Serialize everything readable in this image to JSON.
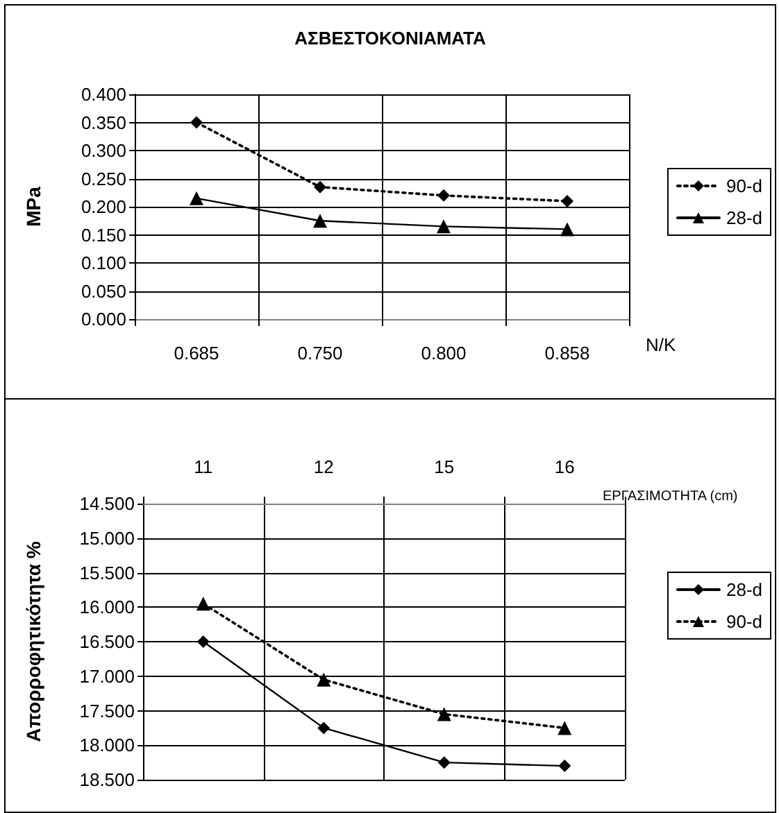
{
  "chart_data": [
    {
      "type": "line",
      "title": "ΑΣΒΕΣΤΟΚΟΝΙΑΜΑΤΑ",
      "xlabel": "N/K",
      "ylabel": "MPa",
      "categories": [
        "0.685",
        "0.750",
        "0.800",
        "0.858"
      ],
      "series": [
        {
          "name": "90-d",
          "color": "#000000",
          "marker": "diamond",
          "line_style": "dotted",
          "values": [
            0.35,
            0.235,
            0.22,
            0.21
          ]
        },
        {
          "name": "28-d",
          "color": "#000000",
          "marker": "triangle",
          "line_style": "solid",
          "values": [
            0.215,
            0.175,
            0.165,
            0.16
          ]
        }
      ],
      "ylim": [
        0,
        0.4
      ],
      "yticks": [
        {
          "value": 0,
          "label": "0.000"
        },
        {
          "value": 0.05,
          "label": "0.050"
        },
        {
          "value": 0.1,
          "label": "0.100"
        },
        {
          "value": 0.15,
          "label": "0.150"
        },
        {
          "value": 0.2,
          "label": "0.200"
        },
        {
          "value": 0.25,
          "label": "0.250"
        },
        {
          "value": 0.3,
          "label": "0.300"
        },
        {
          "value": 0.35,
          "label": "0.350"
        },
        {
          "value": 0.4,
          "label": "0.400"
        }
      ],
      "grid": true,
      "legend": "right"
    },
    {
      "type": "line",
      "xlabel": "ΕΡΓΑΣΙΜΟΤΗΤΑ (cm)",
      "ylabel": "Απορροφητικότητα %",
      "categories": [
        "11",
        "12",
        "15",
        "16"
      ],
      "series": [
        {
          "name": "28-d",
          "color": "#000000",
          "marker": "diamond",
          "line_style": "solid",
          "values": [
            16.5,
            17.75,
            18.25,
            18.3
          ]
        },
        {
          "name": "90-d",
          "color": "#000000",
          "marker": "triangle",
          "line_style": "dotted",
          "values": [
            15.95,
            17.05,
            17.55,
            17.75
          ]
        }
      ],
      "ylim": [
        18.5,
        14.5
      ],
      "yticks": [
        {
          "value": 14.5,
          "label": "14.500"
        },
        {
          "value": 15,
          "label": "15.000"
        },
        {
          "value": 15.5,
          "label": "15.500"
        },
        {
          "value": 16,
          "label": "16.000"
        },
        {
          "value": 16.5,
          "label": "16.500"
        },
        {
          "value": 17,
          "label": "17.000"
        },
        {
          "value": 17.5,
          "label": "17.500"
        },
        {
          "value": 18,
          "label": "18.000"
        },
        {
          "value": 18.5,
          "label": "18.500"
        }
      ],
      "grid": true,
      "legend": "right"
    }
  ]
}
